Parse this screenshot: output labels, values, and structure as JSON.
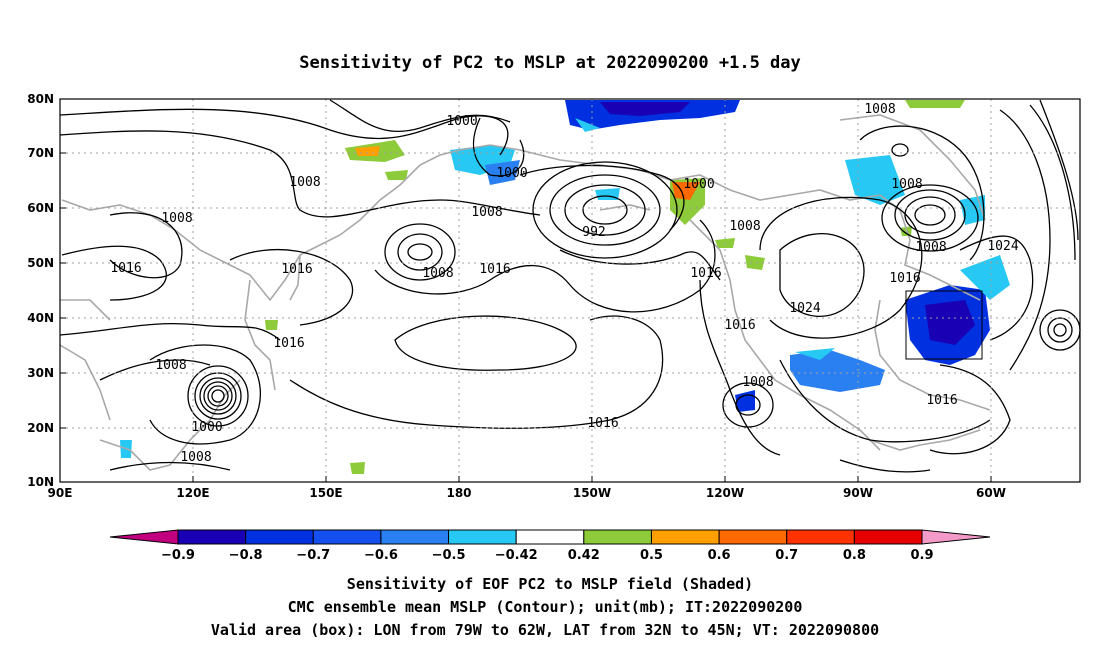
{
  "title": "Sensitivity of PC2 to MSLP at 2022090200 +1.5 day",
  "map": {
    "lat_ticks": [
      "80N",
      "70N",
      "60N",
      "50N",
      "40N",
      "30N",
      "20N",
      "10N"
    ],
    "lon_ticks": [
      "90E",
      "120E",
      "150E",
      "180",
      "150W",
      "120W",
      "90W",
      "60W"
    ],
    "valid_box": {
      "lon_from": "79W",
      "lon_to": "62W",
      "lat_from": "32N",
      "lat_to": "45N"
    },
    "contour_labels": [
      {
        "text": "1000"
      },
      {
        "text": "1000"
      },
      {
        "text": "1008"
      },
      {
        "text": "1008"
      },
      {
        "text": "1008"
      },
      {
        "text": "992"
      },
      {
        "text": "1000"
      },
      {
        "text": "1008"
      },
      {
        "text": "1008"
      },
      {
        "text": "1008"
      },
      {
        "text": "1024"
      },
      {
        "text": "1016"
      },
      {
        "text": "1016"
      },
      {
        "text": "1016"
      },
      {
        "text": "1016"
      },
      {
        "text": "1008"
      },
      {
        "text": "1016"
      },
      {
        "text": "1016"
      },
      {
        "text": "1024"
      },
      {
        "text": "1016"
      },
      {
        "text": "1008"
      },
      {
        "text": "1000"
      },
      {
        "text": "1008"
      },
      {
        "text": "1016"
      },
      {
        "text": "1008"
      },
      {
        "text": "1016"
      },
      {
        "text": "1008"
      }
    ]
  },
  "colorbar": {
    "labels": [
      "-0.9",
      "-0.8",
      "-0.7",
      "-0.6",
      "-0.5",
      "-0.42",
      "0.42",
      "0.5",
      "0.6",
      "0.7",
      "0.8",
      "0.9"
    ],
    "colors": [
      "#c0007f",
      "#1a00b4",
      "#0030e0",
      "#1450f0",
      "#2a80f0",
      "#28c8f5",
      "#ffffff",
      "#8ecb3a",
      "#ff9f00",
      "#ff6a00",
      "#ff3200",
      "#e60000",
      "#f49ac8"
    ]
  },
  "caption": {
    "line1": "Sensitivity of EOF PC2 to MSLP field (Shaded)",
    "line2": "CMC ensemble mean MSLP (Contour); unit(mb); IT:2022090200",
    "line3": "Valid area (box): LON from 79W to 62W, LAT from 32N to 45N; VT: 2022090800"
  }
}
